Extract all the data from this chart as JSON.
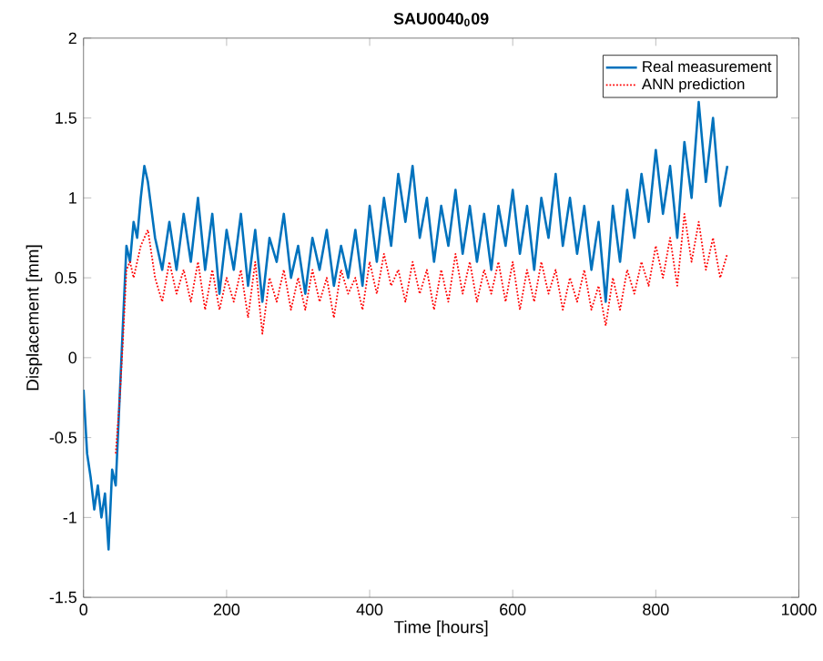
{
  "chart_data": {
    "type": "line",
    "title": "SAU0040$_{0}$09",
    "xlabel": "Time [hours]",
    "ylabel": "Displacement [mm]",
    "xlim": [
      0,
      1000
    ],
    "ylim": [
      -1.5,
      2
    ],
    "xticks": [
      0,
      200,
      400,
      600,
      800,
      1000
    ],
    "yticks": [
      -1.5,
      -1,
      -0.5,
      0,
      0.5,
      1,
      1.5,
      2
    ],
    "grid": false,
    "legend": "top right",
    "series": [
      {
        "name": "Real measurement",
        "color": "#0072bd",
        "line_style": "solid",
        "x": [
          0,
          5,
          10,
          15,
          20,
          25,
          30,
          35,
          40,
          45,
          50,
          55,
          60,
          65,
          70,
          75,
          80,
          85,
          90,
          100,
          110,
          120,
          130,
          140,
          150,
          160,
          170,
          180,
          190,
          200,
          210,
          220,
          230,
          240,
          250,
          260,
          270,
          280,
          290,
          300,
          310,
          320,
          330,
          340,
          350,
          360,
          370,
          380,
          390,
          400,
          410,
          420,
          430,
          440,
          450,
          460,
          470,
          480,
          490,
          500,
          510,
          520,
          530,
          540,
          550,
          560,
          570,
          580,
          590,
          600,
          610,
          620,
          630,
          640,
          650,
          660,
          670,
          680,
          690,
          700,
          710,
          720,
          730,
          740,
          750,
          760,
          770,
          780,
          790,
          800,
          810,
          820,
          830,
          840,
          850,
          860,
          870,
          880,
          890,
          900
        ],
        "values": [
          -0.2,
          -0.6,
          -0.75,
          -0.95,
          -0.8,
          -1.0,
          -0.85,
          -1.2,
          -0.7,
          -0.8,
          -0.3,
          0.2,
          0.7,
          0.6,
          0.85,
          0.75,
          1.0,
          1.2,
          1.1,
          0.75,
          0.55,
          0.85,
          0.55,
          0.9,
          0.6,
          1.0,
          0.55,
          0.9,
          0.4,
          0.8,
          0.55,
          0.9,
          0.45,
          0.8,
          0.35,
          0.75,
          0.6,
          0.9,
          0.5,
          0.7,
          0.4,
          0.75,
          0.55,
          0.8,
          0.45,
          0.7,
          0.5,
          0.8,
          0.45,
          0.95,
          0.6,
          1.0,
          0.7,
          1.15,
          0.85,
          1.2,
          0.75,
          1.0,
          0.6,
          0.95,
          0.7,
          1.05,
          0.65,
          0.95,
          0.6,
          0.9,
          0.55,
          0.95,
          0.7,
          1.05,
          0.65,
          0.95,
          0.55,
          1.0,
          0.75,
          1.15,
          0.7,
          1.0,
          0.65,
          0.95,
          0.55,
          0.85,
          0.35,
          0.95,
          0.6,
          1.05,
          0.75,
          1.15,
          0.85,
          1.3,
          0.9,
          1.2,
          0.75,
          1.35,
          1.0,
          1.6,
          1.1,
          1.5,
          0.95,
          1.2
        ]
      },
      {
        "name": "ANN prediction",
        "color": "#ff0000",
        "line_style": "dotted",
        "x": [
          45,
          50,
          55,
          60,
          65,
          70,
          80,
          90,
          100,
          110,
          120,
          130,
          140,
          150,
          160,
          170,
          180,
          190,
          200,
          210,
          220,
          230,
          240,
          250,
          260,
          270,
          280,
          290,
          300,
          310,
          320,
          330,
          340,
          350,
          360,
          370,
          380,
          390,
          400,
          410,
          420,
          430,
          440,
          450,
          460,
          470,
          480,
          490,
          500,
          510,
          520,
          530,
          540,
          550,
          560,
          570,
          580,
          590,
          600,
          610,
          620,
          630,
          640,
          650,
          660,
          670,
          680,
          690,
          700,
          710,
          720,
          730,
          740,
          750,
          760,
          770,
          780,
          790,
          800,
          810,
          820,
          830,
          840,
          850,
          860,
          870,
          880,
          890,
          900
        ],
        "values": [
          -0.6,
          -0.3,
          0.1,
          0.55,
          0.6,
          0.5,
          0.7,
          0.8,
          0.5,
          0.35,
          0.6,
          0.4,
          0.55,
          0.35,
          0.6,
          0.3,
          0.55,
          0.3,
          0.5,
          0.35,
          0.55,
          0.25,
          0.6,
          0.15,
          0.5,
          0.35,
          0.55,
          0.3,
          0.5,
          0.3,
          0.55,
          0.35,
          0.5,
          0.25,
          0.55,
          0.4,
          0.5,
          0.3,
          0.6,
          0.4,
          0.65,
          0.45,
          0.55,
          0.35,
          0.6,
          0.4,
          0.55,
          0.3,
          0.55,
          0.35,
          0.65,
          0.4,
          0.6,
          0.35,
          0.55,
          0.4,
          0.6,
          0.35,
          0.6,
          0.3,
          0.55,
          0.35,
          0.6,
          0.4,
          0.55,
          0.3,
          0.5,
          0.35,
          0.55,
          0.3,
          0.45,
          0.2,
          0.5,
          0.3,
          0.55,
          0.4,
          0.6,
          0.45,
          0.7,
          0.5,
          0.75,
          0.45,
          0.9,
          0.6,
          0.85,
          0.55,
          0.75,
          0.5,
          0.65
        ]
      }
    ]
  }
}
